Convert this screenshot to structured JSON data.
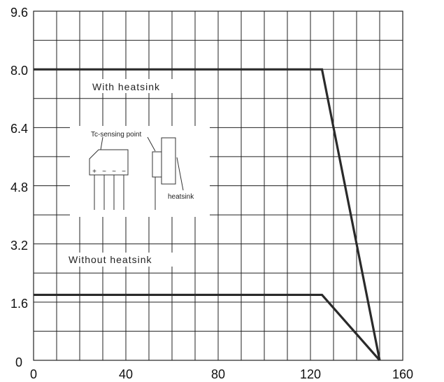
{
  "chart_data": {
    "type": "line",
    "xlim": [
      0,
      160
    ],
    "ylim": [
      0,
      9.6
    ],
    "x_ticks": [
      "0",
      "40",
      "80",
      "120",
      "160"
    ],
    "y_ticks": [
      "0",
      "1.6",
      "3.2",
      "4.8",
      "6.4",
      "8.0",
      "9.6"
    ],
    "grid": true,
    "series": [
      {
        "points": [
          [
            0,
            8.0
          ],
          [
            125,
            8.0
          ],
          [
            150,
            0
          ]
        ]
      },
      {
        "points": [
          [
            0,
            1.8
          ],
          [
            125,
            1.8
          ],
          [
            150,
            0
          ]
        ]
      }
    ],
    "annotations": {
      "with_heatsink": "With heatsink",
      "without_heatsink": "Without heatsink"
    },
    "inset": {
      "tc_label": "Tc-sensing point",
      "heatsink_label": "heatsink",
      "pin_marks": [
        "+",
        "~",
        "~",
        "−"
      ]
    }
  }
}
